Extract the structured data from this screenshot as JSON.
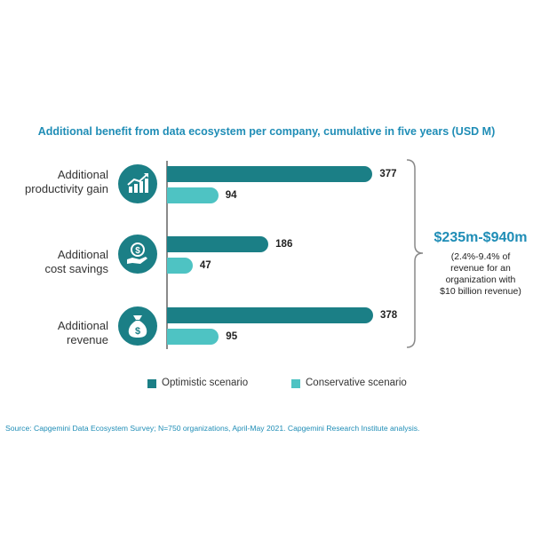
{
  "chart_data": {
    "type": "bar",
    "orientation": "horizontal",
    "title": "Additional benefit from data ecosystem per company, cumulative in five years (USD M)",
    "categories": [
      "Additional productivity gain",
      "Additional cost savings",
      "Additional revenue"
    ],
    "category_lines": [
      [
        "Additional",
        "productivity gain"
      ],
      [
        "Additional",
        "cost savings"
      ],
      [
        "Additional",
        "revenue"
      ]
    ],
    "series": [
      {
        "name": "Optimistic scenario",
        "values": [
          377,
          186,
          378
        ],
        "value_labels": [
          "377",
          "186",
          "378"
        ],
        "color": "#1b7f86"
      },
      {
        "name": "Conservative scenario",
        "values": [
          94,
          47,
          95
        ],
        "value_labels": [
          "94",
          "47",
          "95"
        ],
        "color": "#4ec3c3"
      }
    ],
    "xlim": [
      0,
      378
    ],
    "legend_position": "bottom",
    "grid": false,
    "category_icons": [
      "growth-chart-icon",
      "dollar-hand-icon",
      "money-bag-icon"
    ],
    "annotation": {
      "range": "$235m-$940m",
      "note_lines": [
        "(2.4%-9.4% of",
        "revenue for an",
        "organization with",
        "$10 billion revenue)"
      ]
    }
  },
  "source": "Source: Capgemini Data Ecosystem Survey; N=750 organizations, April-May 2021. Capgemini Research Institute analysis."
}
